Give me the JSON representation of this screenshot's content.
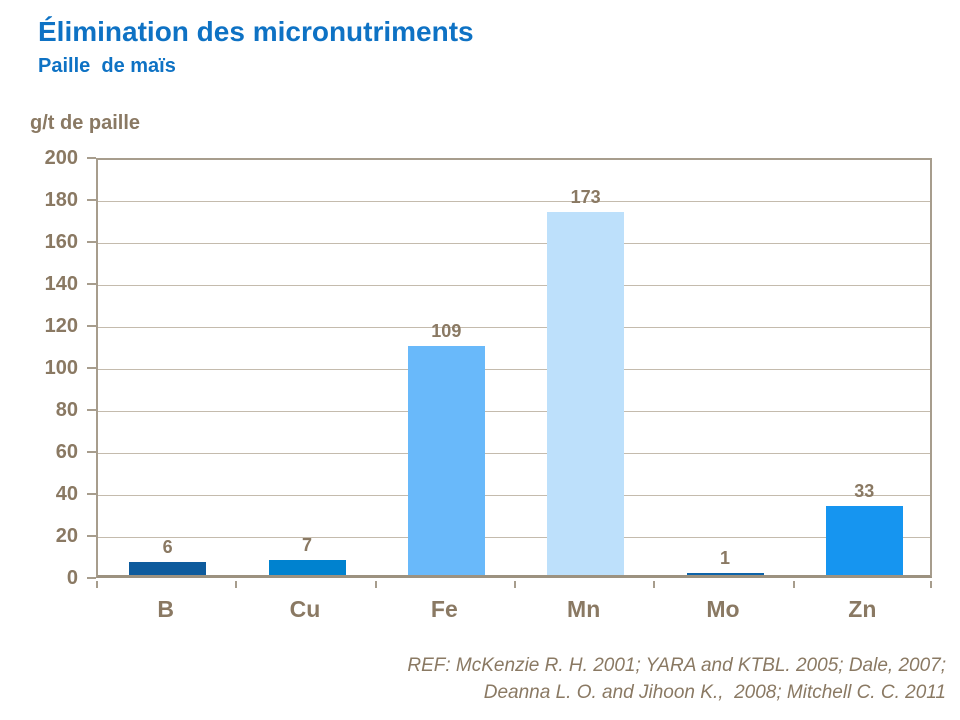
{
  "header": {
    "title": "Élimination des micronutriments",
    "subtitle": "Paille  de maïs"
  },
  "axis_unit_label": "g/t de paille",
  "chart_data": {
    "type": "bar",
    "title": "Élimination des micronutriments",
    "subtitle": "Paille de maïs",
    "ylabel": "g/t de paille",
    "xlabel": "",
    "categories": [
      "B",
      "Cu",
      "Fe",
      "Mn",
      "Mo",
      "Zn"
    ],
    "values": [
      6,
      7,
      109,
      173,
      1,
      33
    ],
    "bar_colors": [
      "#0E5B9D",
      "#0082CF",
      "#69B9FA",
      "#BDE0FB",
      "#0E63A9",
      "#1695F0"
    ],
    "ylim": [
      0,
      200
    ],
    "ytick_step": 20,
    "grid": true,
    "legend_position": "none"
  },
  "footer": {
    "ref_line1": "REF: McKenzie R. H. 2001; YARA and KTBL. 2005; Dale, 2007;",
    "ref_line2": "Deanna L. O. and Jihoon K.,  2008; Mitchell C. C. 2011"
  },
  "colors": {
    "title_blue": "#0E72C4",
    "axis_text_brown": "#8A7963",
    "gridline": "#C4BBAD",
    "plot_border": "#A79D8D"
  }
}
